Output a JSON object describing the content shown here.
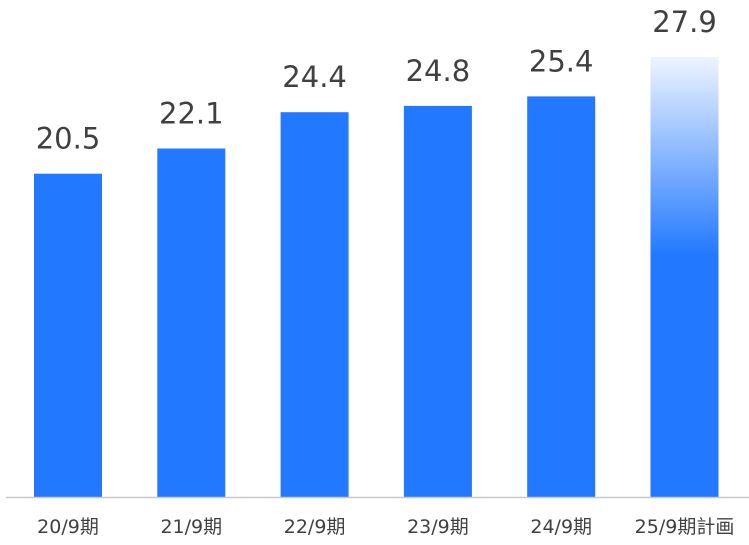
{
  "chart_data": {
    "type": "bar",
    "title": "",
    "xlabel": "",
    "ylabel": "",
    "categories": [
      "20/9期",
      "21/9期",
      "22/9期",
      "23/9期",
      "24/9期",
      "25/9期計画"
    ],
    "values": [
      20.5,
      22.1,
      24.4,
      24.8,
      25.4,
      27.9
    ],
    "value_labels": [
      "20.5",
      "22.1",
      "24.4",
      "24.8",
      "25.4",
      "27.9"
    ],
    "plan_index": 5,
    "ylim": [
      0,
      27.9
    ],
    "grid": false,
    "legend": "none",
    "colors": {
      "bar": "#2279ff",
      "plan_gradient_top": "#eef4ff",
      "baseline": "#c8c8c8",
      "text": "#404040"
    }
  }
}
